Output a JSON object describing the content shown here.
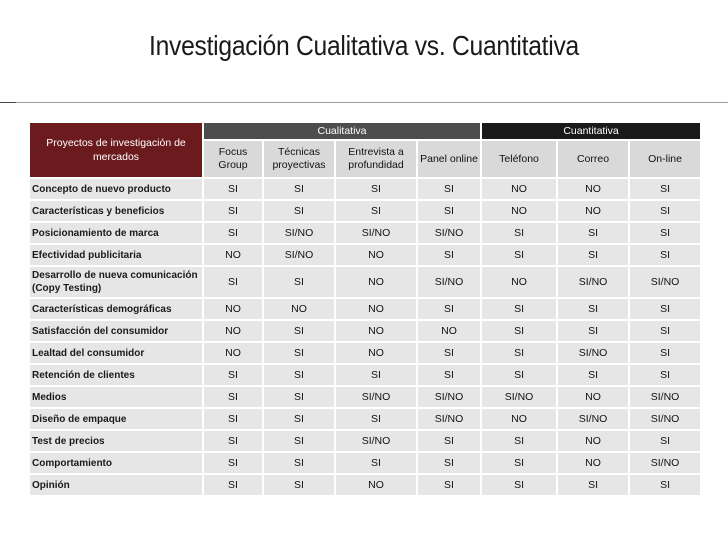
{
  "slide": {
    "title": "Investigación Cualitativa vs. Cuantitativa"
  },
  "table": {
    "corner_label": "Proyectos de investigación de mercados",
    "group_cualitativa": "Cualitativa",
    "group_cuantitativa": "Cuantitativa",
    "columns": [
      "Focus Group",
      "Técnicas proyectivas",
      "Entrevista a profundidad",
      "Panel online",
      "Teléfono",
      "Correo",
      "On-line"
    ],
    "rows": [
      {
        "label": "Concepto de nuevo producto",
        "values": [
          "SI",
          "SI",
          "SI",
          "SI",
          "NO",
          "NO",
          "SI"
        ]
      },
      {
        "label": "Características y beneficios",
        "values": [
          "SI",
          "SI",
          "SI",
          "SI",
          "NO",
          "NO",
          "SI"
        ]
      },
      {
        "label": "Posicionamiento de marca",
        "values": [
          "SI",
          "SI/NO",
          "SI/NO",
          "SI/NO",
          "SI",
          "SI",
          "SI"
        ]
      },
      {
        "label": "Efectividad publicitaria",
        "values": [
          "NO",
          "SI/NO",
          "NO",
          "SI",
          "SI",
          "SI",
          "SI"
        ]
      },
      {
        "label": "Desarrollo de nueva comunicación (Copy Testing)",
        "values": [
          "SI",
          "SI",
          "NO",
          "SI/NO",
          "NO",
          "SI/NO",
          "SI/NO"
        ]
      },
      {
        "label": "Características demográficas",
        "values": [
          "NO",
          "NO",
          "NO",
          "SI",
          "SI",
          "SI",
          "SI"
        ]
      },
      {
        "label": "Satisfacción del consumidor",
        "values": [
          "NO",
          "SI",
          "NO",
          "NO",
          "SI",
          "SI",
          "SI"
        ]
      },
      {
        "label": "Lealtad del consumidor",
        "values": [
          "NO",
          "SI",
          "NO",
          "SI",
          "SI",
          "SI/NO",
          "SI"
        ]
      },
      {
        "label": "Retención de clientes",
        "values": [
          "SI",
          "SI",
          "SI",
          "SI",
          "SI",
          "SI",
          "SI"
        ]
      },
      {
        "label": "Medios",
        "values": [
          "SI",
          "SI",
          "SI/NO",
          "SI/NO",
          "SI/NO",
          "NO",
          "SI/NO"
        ]
      },
      {
        "label": "Diseño de empaque",
        "values": [
          "SI",
          "SI",
          "SI",
          "SI/NO",
          "NO",
          "SI/NO",
          "SI/NO"
        ]
      },
      {
        "label": "Test de precios",
        "values": [
          "SI",
          "SI",
          "SI/NO",
          "SI",
          "SI",
          "NO",
          "SI"
        ]
      },
      {
        "label": "Comportamiento",
        "values": [
          "SI",
          "SI",
          "SI",
          "SI",
          "SI",
          "NO",
          "SI/NO"
        ]
      },
      {
        "label": "Opinión",
        "values": [
          "SI",
          "SI",
          "NO",
          "SI",
          "SI",
          "SI",
          "SI"
        ]
      }
    ]
  }
}
